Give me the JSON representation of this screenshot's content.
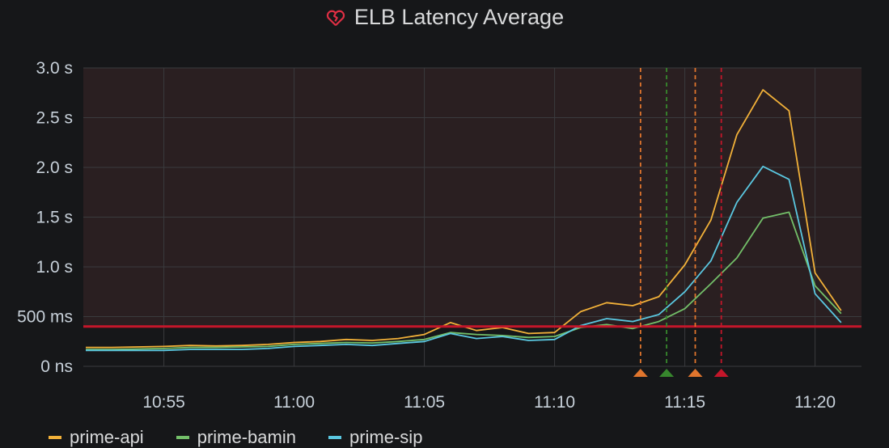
{
  "panel": {
    "title": "ELB Latency Average",
    "title_icon": "broken-heart-icon",
    "alert_state_color": "#e02f44"
  },
  "chart_data": {
    "type": "line",
    "title": "ELB Latency Average",
    "y_ticks": [
      "0 ns",
      "500 ms",
      "1.0 s",
      "1.5 s",
      "2.0 s",
      "2.5 s",
      "3.0 s"
    ],
    "x_ticks": [
      "10:55",
      "11:00",
      "11:05",
      "11:10",
      "11:15",
      "11:20"
    ],
    "ylim": [
      0,
      3.0
    ],
    "y_unit": "s",
    "grid": true,
    "threshold": {
      "value": 0.4,
      "color": "#c4162a"
    },
    "annotations": [
      {
        "time": "11:13.3",
        "color": "#e0752d"
      },
      {
        "time": "11:14.3",
        "color": "#37872d"
      },
      {
        "time": "11:15.4",
        "color": "#e0752d"
      },
      {
        "time": "11:16.4",
        "color": "#c4162a"
      }
    ],
    "x": [
      "10:52",
      "10:53",
      "10:54",
      "10:55",
      "10:56",
      "10:57",
      "10:58",
      "10:59",
      "11:00",
      "11:01",
      "11:02",
      "11:03",
      "11:04",
      "11:05",
      "11:06",
      "11:07",
      "11:08",
      "11:09",
      "11:10",
      "11:11",
      "11:12",
      "11:13",
      "11:14",
      "11:15",
      "11:16",
      "11:17",
      "11:18",
      "11:19",
      "11:20",
      "11:21"
    ],
    "series": [
      {
        "name": "prime-api",
        "color": "#f2b139",
        "values": [
          0.19,
          0.19,
          0.195,
          0.2,
          0.21,
          0.205,
          0.21,
          0.22,
          0.24,
          0.25,
          0.27,
          0.26,
          0.28,
          0.32,
          0.44,
          0.36,
          0.39,
          0.33,
          0.34,
          0.55,
          0.64,
          0.61,
          0.7,
          1.02,
          1.47,
          2.33,
          2.78,
          2.57,
          0.94,
          0.56
        ]
      },
      {
        "name": "prime-bamin",
        "color": "#73bf69",
        "values": [
          0.17,
          0.17,
          0.175,
          0.18,
          0.19,
          0.19,
          0.195,
          0.2,
          0.22,
          0.23,
          0.24,
          0.235,
          0.25,
          0.27,
          0.34,
          0.32,
          0.31,
          0.29,
          0.3,
          0.39,
          0.42,
          0.38,
          0.45,
          0.58,
          0.83,
          1.09,
          1.49,
          1.55,
          0.81,
          0.53
        ]
      },
      {
        "name": "prime-sip",
        "color": "#5ac7e0",
        "values": [
          0.16,
          0.16,
          0.16,
          0.16,
          0.17,
          0.17,
          0.17,
          0.18,
          0.2,
          0.21,
          0.22,
          0.21,
          0.23,
          0.25,
          0.33,
          0.28,
          0.3,
          0.26,
          0.27,
          0.41,
          0.48,
          0.45,
          0.52,
          0.75,
          1.06,
          1.65,
          2.01,
          1.88,
          0.73,
          0.44
        ]
      }
    ]
  }
}
